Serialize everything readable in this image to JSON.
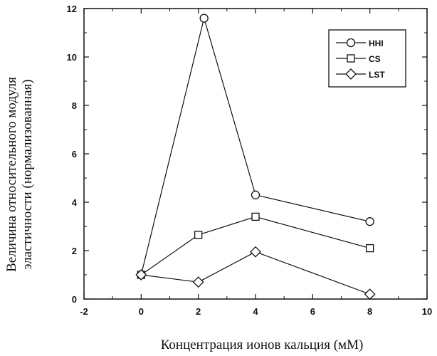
{
  "chart_data": {
    "type": "line",
    "xlabel": "Концентрация ионов кальция (мМ)",
    "ylabel_lines": [
      "Величина относительного модуля",
      "эластичности (нормализованная)"
    ],
    "xlim": [
      -2,
      10
    ],
    "ylim": [
      0,
      12
    ],
    "x_ticks": [
      -2,
      0,
      2,
      4,
      6,
      8,
      10
    ],
    "y_ticks": [
      0,
      2,
      4,
      6,
      8,
      10,
      12
    ],
    "grid": false,
    "legend_position": "top-right",
    "series": [
      {
        "name": "HHI",
        "marker": "circle",
        "x": [
          0,
          2.2,
          4,
          8
        ],
        "y": [
          1.0,
          11.6,
          4.3,
          3.2
        ]
      },
      {
        "name": "CS",
        "marker": "square",
        "x": [
          0,
          2,
          4,
          8
        ],
        "y": [
          1.0,
          2.65,
          3.4,
          2.1
        ]
      },
      {
        "name": "LST",
        "marker": "diamond",
        "x": [
          0,
          2,
          4,
          8
        ],
        "y": [
          1.0,
          0.7,
          1.95,
          0.2
        ]
      }
    ]
  }
}
